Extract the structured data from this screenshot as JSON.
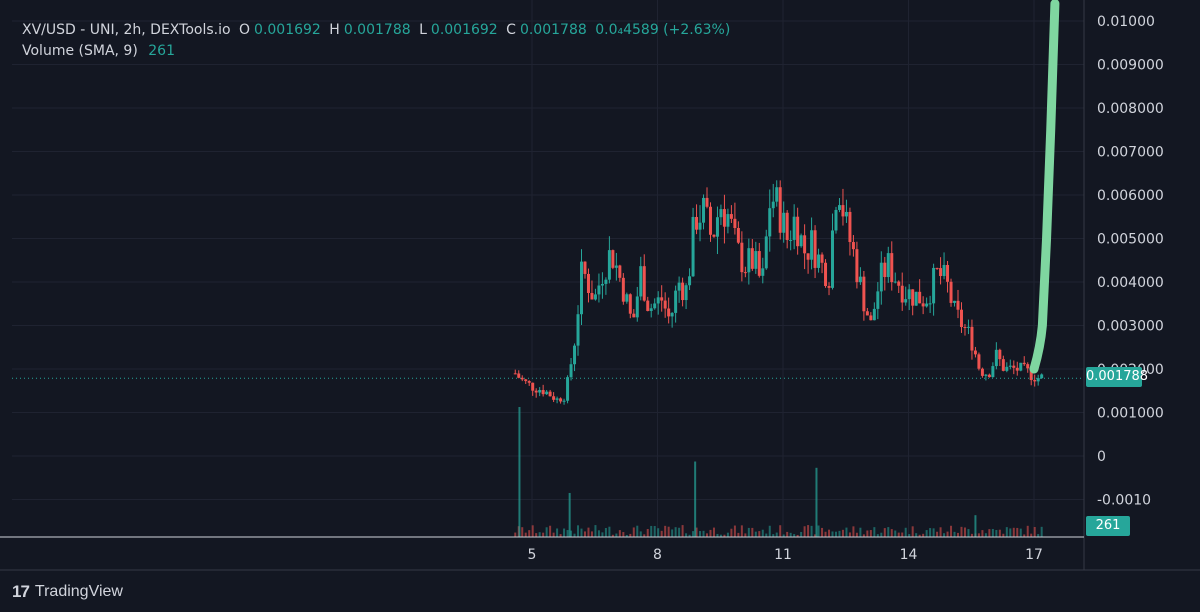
{
  "legend": {
    "symbol": "XV/USD - UNI, 2h, DEXTools.io",
    "o_label": "O",
    "o_value": "0.001692",
    "h_label": "H",
    "h_value": "0.001788",
    "l_label": "L",
    "l_value": "0.001692",
    "c_label": "C",
    "c_value": "0.001788",
    "change": "0.0₄4589 (+2.63%)",
    "volume_label": "Volume (SMA, 9)",
    "volume_value": "261"
  },
  "brand": {
    "logo": "17",
    "name": "TradingView"
  },
  "price_tag": "0.001788",
  "volume_tag": "261",
  "colors": {
    "up": "#26a69a",
    "down": "#ef5350",
    "background": "#131722",
    "grid": "#1f2331",
    "overlay_line": "#7fd6a0"
  },
  "chart_data": {
    "type": "candlestick",
    "title": "XV/USD - UNI, 2h, DEXTools.io",
    "x_ticks": [
      "5",
      "8",
      "11",
      "14",
      "17"
    ],
    "y_ticks": [
      "0.01000",
      "0.009000",
      "0.008000",
      "0.007000",
      "0.006000",
      "0.005000",
      "0.004000",
      "0.003000",
      "0.002000",
      "0.001000",
      "0",
      "-0.0010"
    ],
    "ylim": [
      -0.0015,
      0.0104
    ],
    "last_price": 0.001788,
    "last_volume": 261,
    "price_path": [
      [
        4.6,
        0.0019
      ],
      [
        4.8,
        0.0017
      ],
      [
        5.0,
        0.0016
      ],
      [
        5.3,
        0.0015
      ],
      [
        5.6,
        0.0013
      ],
      [
        5.8,
        0.0014
      ],
      [
        6.0,
        0.0025
      ],
      [
        6.2,
        0.0043
      ],
      [
        6.5,
        0.0036
      ],
      [
        6.7,
        0.0043
      ],
      [
        6.9,
        0.0047
      ],
      [
        7.2,
        0.0038
      ],
      [
        7.4,
        0.003
      ],
      [
        7.6,
        0.0042
      ],
      [
        7.8,
        0.0034
      ],
      [
        8.1,
        0.0036
      ],
      [
        8.3,
        0.0031
      ],
      [
        8.5,
        0.004
      ],
      [
        8.7,
        0.0038
      ],
      [
        8.9,
        0.0055
      ],
      [
        9.1,
        0.0056
      ],
      [
        9.3,
        0.005
      ],
      [
        9.5,
        0.0058
      ],
      [
        9.7,
        0.0055
      ],
      [
        9.9,
        0.0047
      ],
      [
        10.1,
        0.0044
      ],
      [
        10.3,
        0.0045
      ],
      [
        10.5,
        0.0039
      ],
      [
        10.7,
        0.006
      ],
      [
        10.9,
        0.0057
      ],
      [
        11.1,
        0.005
      ],
      [
        11.3,
        0.0055
      ],
      [
        11.5,
        0.0047
      ],
      [
        11.7,
        0.0049
      ],
      [
        11.9,
        0.0044
      ],
      [
        12.1,
        0.0042
      ],
      [
        12.3,
        0.0065
      ],
      [
        12.5,
        0.0053
      ],
      [
        12.7,
        0.0046
      ],
      [
        12.9,
        0.0037
      ],
      [
        13.1,
        0.003
      ],
      [
        13.3,
        0.004
      ],
      [
        13.5,
        0.0044
      ],
      [
        13.7,
        0.0041
      ],
      [
        13.9,
        0.0038
      ],
      [
        14.1,
        0.0037
      ],
      [
        14.4,
        0.0036
      ],
      [
        14.7,
        0.0042
      ],
      [
        14.9,
        0.004
      ],
      [
        15.1,
        0.0033
      ],
      [
        15.3,
        0.003
      ],
      [
        15.5,
        0.0027
      ],
      [
        15.7,
        0.002
      ],
      [
        15.9,
        0.0019
      ],
      [
        16.1,
        0.0023
      ],
      [
        16.3,
        0.002
      ],
      [
        16.6,
        0.002
      ],
      [
        16.9,
        0.0019
      ],
      [
        17.1,
        0.0018
      ],
      [
        17.2,
        0.0018
      ]
    ],
    "volume_bars": [
      [
        4.7,
        3100
      ],
      [
        5.9,
        1050
      ],
      [
        8.9,
        1800
      ],
      [
        11.8,
        1650
      ],
      [
        15.6,
        520
      ]
    ],
    "overlay_curve": [
      [
        17.0,
        0.002
      ],
      [
        17.2,
        0.003
      ],
      [
        17.3,
        0.005
      ],
      [
        17.4,
        0.0075
      ],
      [
        17.5,
        0.0104
      ]
    ]
  }
}
